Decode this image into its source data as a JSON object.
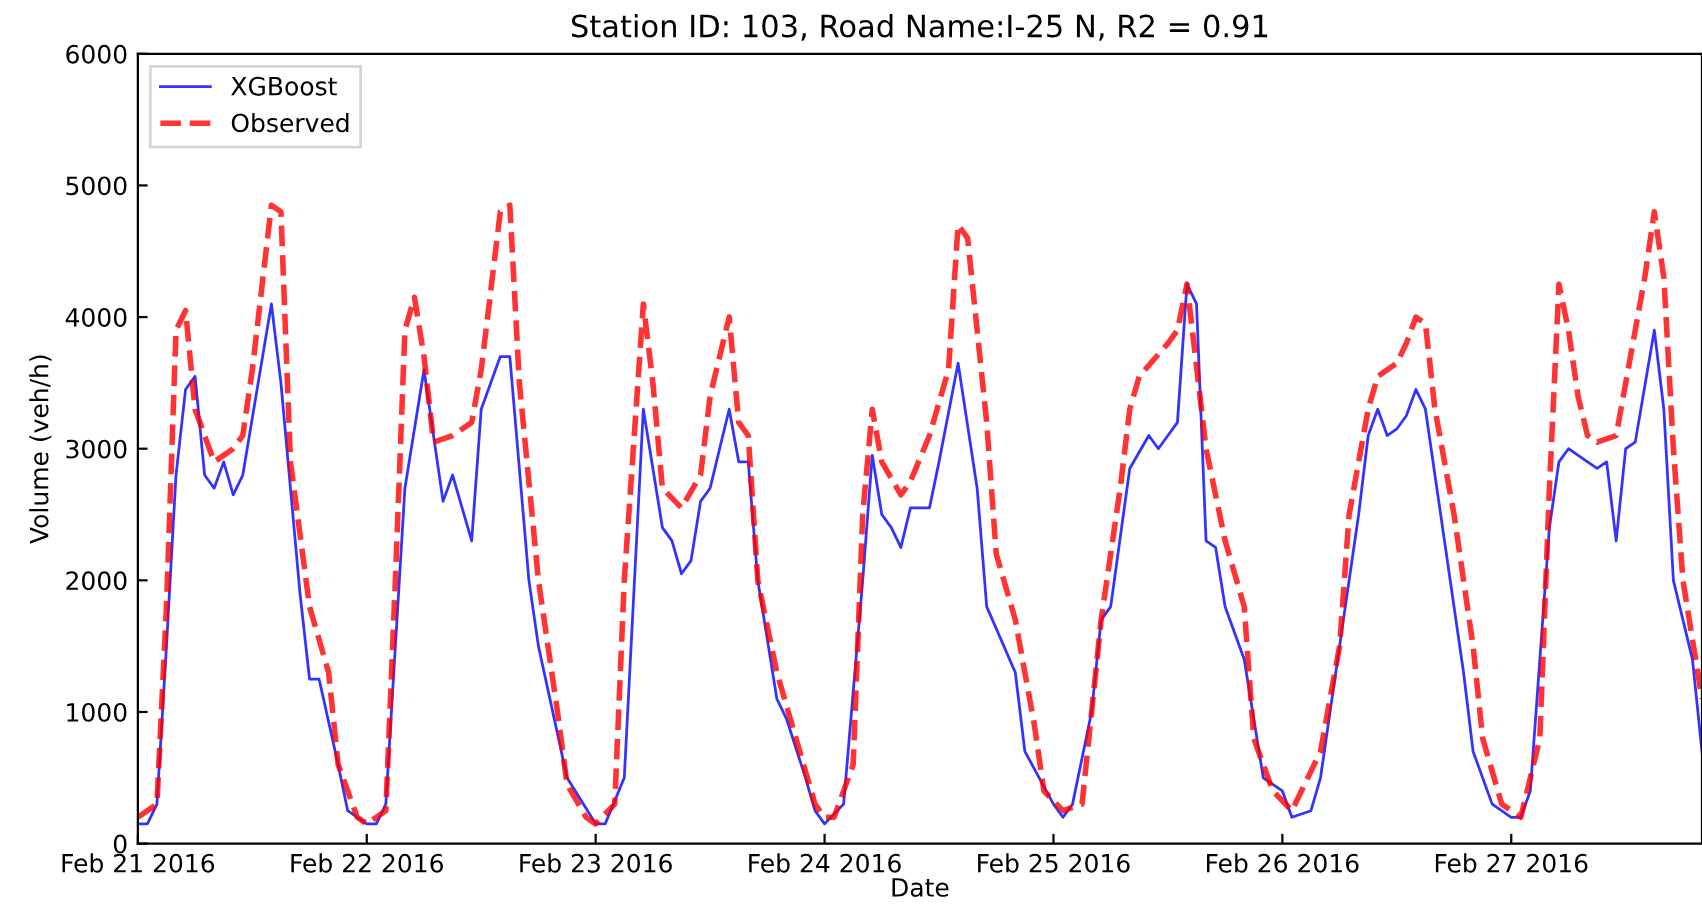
{
  "chart_data": {
    "type": "line",
    "title": "Station ID: 103, Road Name:I-25 N, R2 = 0.91",
    "xlabel": "Date",
    "ylabel": "Volume (veh/h)",
    "xlim": [
      "2016-02-21T00:00",
      "2016-02-27T20:00"
    ],
    "ylim": [
      0,
      6000
    ],
    "yticks": [
      0,
      1000,
      2000,
      3000,
      4000,
      5000,
      6000
    ],
    "xticks": [
      {
        "value": "2016-02-21",
        "label": "Feb 21 2016"
      },
      {
        "value": "2016-02-22",
        "label": "Feb 22 2016"
      },
      {
        "value": "2016-02-23",
        "label": "Feb 23 2016"
      },
      {
        "value": "2016-02-24",
        "label": "Feb 24 2016"
      },
      {
        "value": "2016-02-25",
        "label": "Feb 25 2016"
      },
      {
        "value": "2016-02-26",
        "label": "Feb 26 2016"
      },
      {
        "value": "2016-02-27",
        "label": "Feb 27 2016"
      }
    ],
    "grid": false,
    "legend": "top left",
    "series": [
      {
        "name": "XGBoost",
        "color": "#0000ff",
        "line_style": "solid",
        "x": [
          "2016-02-21T00:00",
          "2016-02-21T01:00",
          "2016-02-21T02:00",
          "2016-02-21T03:00",
          "2016-02-21T04:00",
          "2016-02-21T05:00",
          "2016-02-21T06:00",
          "2016-02-21T07:00",
          "2016-02-21T08:00",
          "2016-02-21T09:00",
          "2016-02-21T10:00",
          "2016-02-21T11:00",
          "2016-02-21T14:00",
          "2016-02-21T15:00",
          "2016-02-21T17:00",
          "2016-02-21T18:00",
          "2016-02-21T19:00",
          "2016-02-21T21:00",
          "2016-02-21T22:00",
          "2016-02-22T00:00",
          "2016-02-22T01:00",
          "2016-02-22T02:00",
          "2016-02-22T04:00",
          "2016-02-22T06:00",
          "2016-02-22T08:00",
          "2016-02-22T09:00",
          "2016-02-22T11:00",
          "2016-02-22T12:00",
          "2016-02-22T14:00",
          "2016-02-22T15:00",
          "2016-02-22T17:00",
          "2016-02-22T18:00",
          "2016-02-22T21:00",
          "2016-02-23T00:00",
          "2016-02-23T01:00",
          "2016-02-23T03:00",
          "2016-02-23T05:00",
          "2016-02-23T07:00",
          "2016-02-23T08:00",
          "2016-02-23T09:00",
          "2016-02-23T10:00",
          "2016-02-23T11:00",
          "2016-02-23T12:00",
          "2016-02-23T14:00",
          "2016-02-23T15:00",
          "2016-02-23T16:00",
          "2016-02-23T17:00",
          "2016-02-23T19:00",
          "2016-02-23T20:00",
          "2016-02-23T22:00",
          "2016-02-23T23:00",
          "2016-02-24T00:00",
          "2016-02-24T02:00",
          "2016-02-24T04:00",
          "2016-02-24T05:00",
          "2016-02-24T06:00",
          "2016-02-24T07:00",
          "2016-02-24T08:00",
          "2016-02-24T09:00",
          "2016-02-24T11:00",
          "2016-02-24T12:00",
          "2016-02-24T14:00",
          "2016-02-24T16:00",
          "2016-02-24T17:00",
          "2016-02-24T20:00",
          "2016-02-24T21:00",
          "2016-02-25T00:00",
          "2016-02-25T01:00",
          "2016-02-25T02:00",
          "2016-02-25T04:00",
          "2016-02-25T05:00",
          "2016-02-25T06:00",
          "2016-02-25T08:00",
          "2016-02-25T10:00",
          "2016-02-25T11:00",
          "2016-02-25T12:00",
          "2016-02-25T13:00",
          "2016-02-25T14:00",
          "2016-02-25T15:00",
          "2016-02-25T16:00",
          "2016-02-25T17:00",
          "2016-02-25T18:00",
          "2016-02-25T20:00",
          "2016-02-25T22:00",
          "2016-02-26T00:00",
          "2016-02-26T01:00",
          "2016-02-26T03:00",
          "2016-02-26T04:00",
          "2016-02-26T06:00",
          "2016-02-26T08:00",
          "2016-02-26T09:00",
          "2016-02-26T10:00",
          "2016-02-26T11:00",
          "2016-02-26T12:00",
          "2016-02-26T13:00",
          "2016-02-26T14:00",
          "2016-02-26T15:00",
          "2016-02-26T17:00",
          "2016-02-26T19:00",
          "2016-02-26T20:00",
          "2016-02-26T22:00",
          "2016-02-27T00:00",
          "2016-02-27T01:00",
          "2016-02-27T02:00",
          "2016-02-27T04:00",
          "2016-02-27T05:00",
          "2016-02-27T06:00",
          "2016-02-27T08:00",
          "2016-02-27T09:00",
          "2016-02-27T10:00",
          "2016-02-27T11:00",
          "2016-02-27T12:00",
          "2016-02-27T13:00",
          "2016-02-27T15:00",
          "2016-02-27T16:00",
          "2016-02-27T17:00",
          "2016-02-27T19:00",
          "2016-02-27T20:00"
        ],
        "values": [
          150,
          150,
          300,
          1500,
          2800,
          3450,
          3550,
          2800,
          2700,
          2900,
          2650,
          2800,
          4100,
          3500,
          1900,
          1250,
          1250,
          600,
          250,
          150,
          150,
          300,
          2700,
          3600,
          2600,
          2800,
          2300,
          3300,
          3700,
          3700,
          2000,
          1500,
          500,
          150,
          150,
          500,
          3300,
          2400,
          2300,
          2050,
          2150,
          2600,
          2700,
          3300,
          2900,
          2900,
          2000,
          1100,
          950,
          500,
          250,
          150,
          300,
          2000,
          2950,
          2500,
          2400,
          2250,
          2550,
          2550,
          2900,
          3650,
          2700,
          1800,
          1300,
          700,
          300,
          200,
          300,
          1000,
          1700,
          1800,
          2850,
          3100,
          3000,
          3100,
          3200,
          4250,
          4100,
          2300,
          2250,
          1800,
          1400,
          500,
          400,
          200,
          250,
          500,
          1500,
          2500,
          3100,
          3300,
          3100,
          3150,
          3250,
          3450,
          3300,
          2300,
          1300,
          700,
          300,
          200,
          200,
          400,
          2400,
          2900,
          3000,
          2900,
          2850,
          2900,
          2300,
          3000,
          3050,
          3900,
          3300,
          2000,
          1400,
          700
        ]
      },
      {
        "name": "Observed",
        "color": "#ff0000",
        "line_style": "dashed",
        "x": [
          "2016-02-21T00:00",
          "2016-02-21T02:00",
          "2016-02-21T03:00",
          "2016-02-21T04:00",
          "2016-02-21T05:00",
          "2016-02-21T06:00",
          "2016-02-21T08:00",
          "2016-02-21T10:00",
          "2016-02-21T11:00",
          "2016-02-21T12:00",
          "2016-02-21T14:00",
          "2016-02-21T15:00",
          "2016-02-21T16:00",
          "2016-02-21T18:00",
          "2016-02-21T20:00",
          "2016-02-21T21:00",
          "2016-02-21T23:00",
          "2016-02-22T00:00",
          "2016-02-22T02:00",
          "2016-02-22T03:00",
          "2016-02-22T04:00",
          "2016-02-22T05:00",
          "2016-02-22T06:00",
          "2016-02-22T07:00",
          "2016-02-22T09:00",
          "2016-02-22T11:00",
          "2016-02-22T12:00",
          "2016-02-22T14:00",
          "2016-02-22T15:00",
          "2016-02-22T16:00",
          "2016-02-22T18:00",
          "2016-02-22T20:00",
          "2016-02-22T21:00",
          "2016-02-22T23:00",
          "2016-02-23T00:00",
          "2016-02-23T02:00",
          "2016-02-23T03:00",
          "2016-02-23T05:00",
          "2016-02-23T06:00",
          "2016-02-23T07:00",
          "2016-02-23T09:00",
          "2016-02-23T11:00",
          "2016-02-23T12:00",
          "2016-02-23T14:00",
          "2016-02-23T15:00",
          "2016-02-23T16:00",
          "2016-02-23T17:00",
          "2016-02-23T19:00",
          "2016-02-23T21:00",
          "2016-02-23T23:00",
          "2016-02-24T00:00",
          "2016-02-24T01:00",
          "2016-02-24T03:00",
          "2016-02-24T04:00",
          "2016-02-24T05:00",
          "2016-02-24T06:00",
          "2016-02-24T08:00",
          "2016-02-24T09:00",
          "2016-02-24T11:00",
          "2016-02-24T13:00",
          "2016-02-24T14:00",
          "2016-02-24T15:00",
          "2016-02-24T17:00",
          "2016-02-24T18:00",
          "2016-02-24T20:00",
          "2016-02-24T22:00",
          "2016-02-24T23:00",
          "2016-02-25T01:00",
          "2016-02-25T03:00",
          "2016-02-25T04:00",
          "2016-02-25T05:00",
          "2016-02-25T07:00",
          "2016-02-25T08:00",
          "2016-02-25T09:00",
          "2016-02-25T12:00",
          "2016-02-25T13:00",
          "2016-02-25T14:00",
          "2016-02-25T16:00",
          "2016-02-25T18:00",
          "2016-02-25T20:00",
          "2016-02-25T21:00",
          "2016-02-25T23:00",
          "2016-02-26T01:00",
          "2016-02-26T04:00",
          "2016-02-26T06:00",
          "2016-02-26T07:00",
          "2016-02-26T09:00",
          "2016-02-26T10:00",
          "2016-02-26T12:00",
          "2016-02-26T13:00",
          "2016-02-26T14:00",
          "2016-02-26T15:00",
          "2016-02-26T16:00",
          "2016-02-26T18:00",
          "2016-02-26T20:00",
          "2016-02-26T21:00",
          "2016-02-26T23:00",
          "2016-02-27T01:00",
          "2016-02-27T03:00",
          "2016-02-27T04:00",
          "2016-02-27T05:00",
          "2016-02-27T06:00",
          "2016-02-27T07:00",
          "2016-02-27T08:00",
          "2016-02-27T09:00",
          "2016-02-27T11:00",
          "2016-02-27T12:00",
          "2016-02-27T14:00",
          "2016-02-27T15:00",
          "2016-02-27T16:00",
          "2016-02-27T17:00",
          "2016-02-27T18:00",
          "2016-02-27T20:00"
        ],
        "values": [
          200,
          300,
          1800,
          3900,
          4050,
          3300,
          2900,
          3000,
          3100,
          3600,
          4850,
          4800,
          2900,
          1800,
          1300,
          600,
          200,
          150,
          250,
          2000,
          3900,
          4150,
          3700,
          3050,
          3100,
          3200,
          3600,
          4800,
          4850,
          3500,
          2000,
          1000,
          450,
          200,
          150,
          300,
          2000,
          4100,
          3500,
          2700,
          2550,
          2800,
          3400,
          4000,
          3200,
          3100,
          2000,
          1300,
          800,
          300,
          200,
          200,
          600,
          2500,
          3300,
          2900,
          2650,
          2750,
          3100,
          3600,
          4700,
          4600,
          3200,
          2200,
          1700,
          900,
          400,
          250,
          300,
          1000,
          1700,
          2700,
          3300,
          3550,
          3800,
          3900,
          4250,
          3000,
          2300,
          1800,
          800,
          400,
          250,
          700,
          1500,
          2500,
          3300,
          3550,
          3650,
          3800,
          4000,
          3950,
          3300,
          2500,
          1500,
          800,
          300,
          200,
          800,
          2700,
          4250,
          3900,
          3400,
          3100,
          3050,
          3100,
          3500,
          4300,
          4800,
          4300,
          3000,
          2000,
          1100
        ]
      }
    ]
  }
}
